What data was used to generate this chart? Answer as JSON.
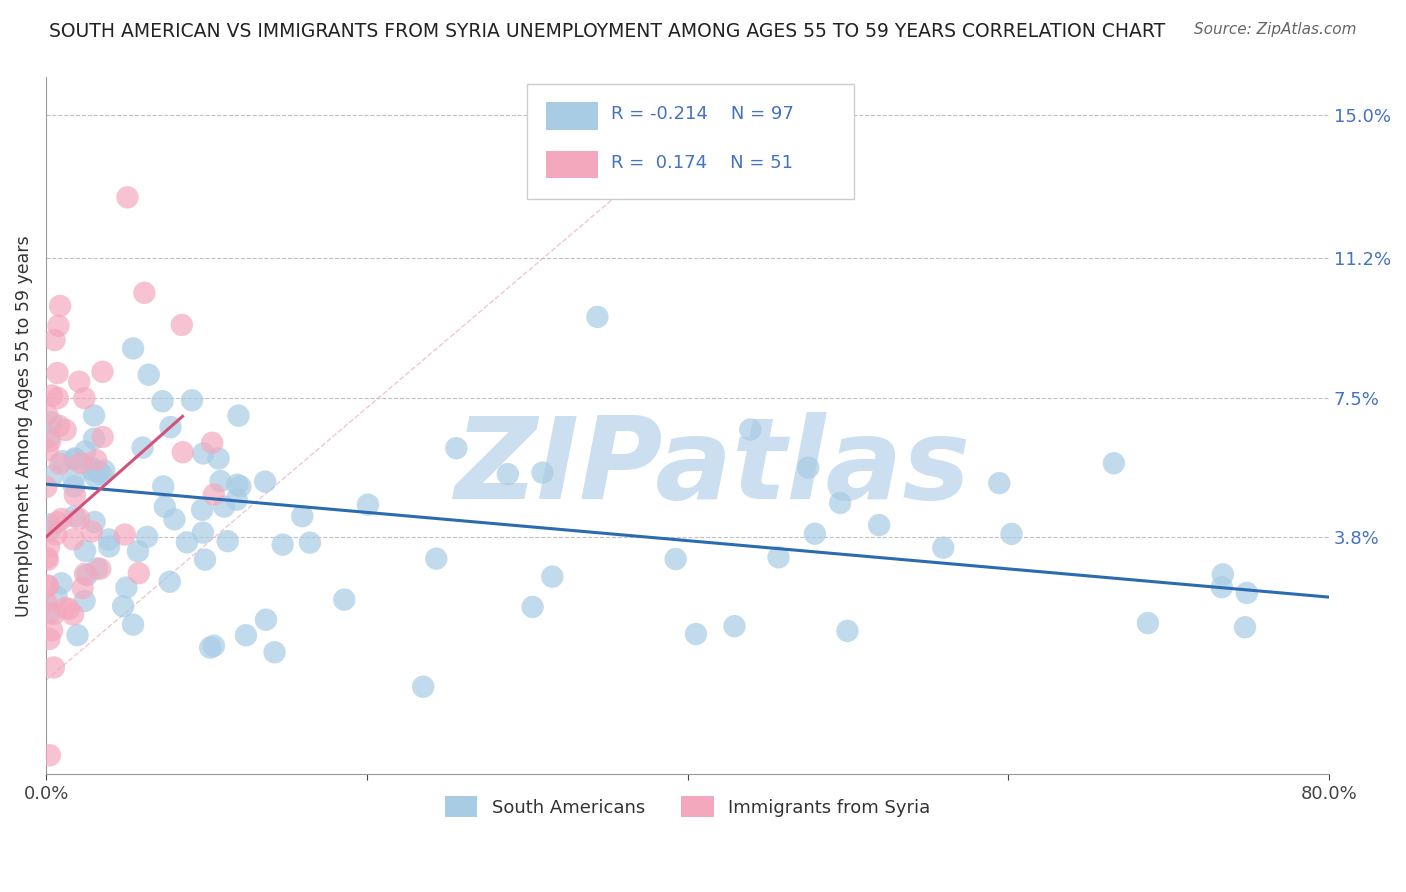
{
  "title": "SOUTH AMERICAN VS IMMIGRANTS FROM SYRIA UNEMPLOYMENT AMONG AGES 55 TO 59 YEARS CORRELATION CHART",
  "source": "Source: ZipAtlas.com",
  "ylabel": "Unemployment Among Ages 55 to 59 years",
  "xlim": [
    0,
    0.8
  ],
  "ylim": [
    -0.025,
    0.16
  ],
  "ytick_positions": [
    0.038,
    0.075,
    0.112,
    0.15
  ],
  "ytick_labels": [
    "3.8%",
    "7.5%",
    "11.2%",
    "15.0%"
  ],
  "blue_color": "#a8cce4",
  "pink_color": "#f4a8be",
  "blue_line_color": "#2b6cb0",
  "pink_line_color": "#d4517a",
  "legend_R_blue": "R = -0.214",
  "legend_N_blue": "N = 97",
  "legend_R_pink": "R =  0.174",
  "legend_N_pink": "N = 51",
  "watermark": "ZIPatlas",
  "watermark_color": "#ccdff0",
  "blue_trend_x": [
    0.0,
    0.8
  ],
  "blue_trend_y": [
    0.052,
    0.022
  ],
  "pink_trend_x": [
    0.0,
    0.085
  ],
  "pink_trend_y": [
    0.038,
    0.07
  ],
  "diag_line_x": [
    0.0,
    0.415
  ],
  "diag_line_y": [
    0.0,
    0.15
  ]
}
